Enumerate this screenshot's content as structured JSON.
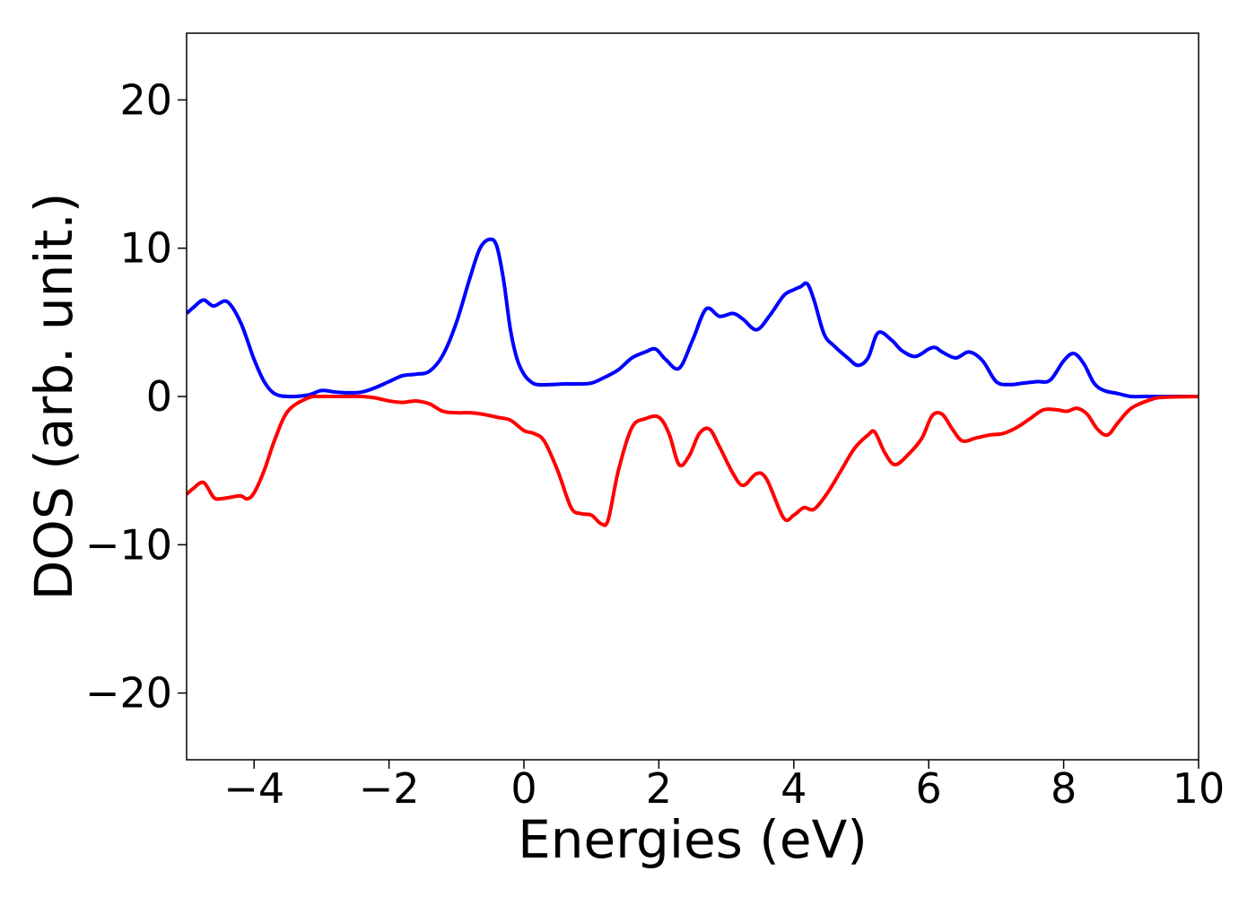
{
  "chart_data": {
    "type": "line",
    "title": "",
    "xlabel": "Energies (eV)",
    "ylabel": "DOS (arb. unit.)",
    "xlim": [
      -5,
      10
    ],
    "ylim": [
      -24.5,
      24.5
    ],
    "grid": false,
    "legend": "none",
    "x_ticks": [
      -4,
      -2,
      0,
      2,
      4,
      6,
      8,
      10
    ],
    "x_tick_labels": [
      "−4",
      "−2",
      "0",
      "2",
      "4",
      "6",
      "8",
      "10"
    ],
    "y_ticks": [
      20,
      10,
      0,
      -10,
      -20
    ],
    "y_tick_labels": [
      "20",
      "10",
      "0",
      "−10",
      "−20"
    ],
    "series": [
      {
        "color": "#0000ff",
        "x": [
          -5.0,
          -4.9,
          -4.75,
          -4.6,
          -4.4,
          -4.2,
          -4.0,
          -3.85,
          -3.7,
          -3.5,
          -3.2,
          -3.0,
          -2.8,
          -2.6,
          -2.4,
          -2.2,
          -2.0,
          -1.8,
          -1.6,
          -1.4,
          -1.2,
          -1.0,
          -0.8,
          -0.65,
          -0.5,
          -0.4,
          -0.3,
          -0.2,
          -0.1,
          0.0,
          0.1,
          0.2,
          0.4,
          0.6,
          0.8,
          1.0,
          1.2,
          1.4,
          1.6,
          1.8,
          1.95,
          2.1,
          2.3,
          2.5,
          2.7,
          2.9,
          3.1,
          3.25,
          3.45,
          3.65,
          3.85,
          4.0,
          4.1,
          4.2,
          4.3,
          4.45,
          4.6,
          4.8,
          4.95,
          5.1,
          5.25,
          5.45,
          5.6,
          5.8,
          6.0,
          6.1,
          6.2,
          6.4,
          6.6,
          6.8,
          7.0,
          7.2,
          7.4,
          7.6,
          7.8,
          8.0,
          8.15,
          8.3,
          8.45,
          8.6,
          8.8,
          9.0,
          9.2,
          9.5,
          10.0
        ],
        "y": [
          5.6,
          6.0,
          6.5,
          6.1,
          6.4,
          5.0,
          2.5,
          1.0,
          0.2,
          0.0,
          0.1,
          0.4,
          0.3,
          0.25,
          0.3,
          0.6,
          1.0,
          1.4,
          1.5,
          1.7,
          2.8,
          5.0,
          8.0,
          10.0,
          10.6,
          10.1,
          7.8,
          4.5,
          2.5,
          1.5,
          1.0,
          0.8,
          0.8,
          0.85,
          0.85,
          0.9,
          1.3,
          1.8,
          2.6,
          3.0,
          3.2,
          2.5,
          1.9,
          3.8,
          5.9,
          5.4,
          5.6,
          5.2,
          4.5,
          5.5,
          6.8,
          7.2,
          7.4,
          7.6,
          6.5,
          4.2,
          3.4,
          2.6,
          2.1,
          2.6,
          4.3,
          3.8,
          3.1,
          2.7,
          3.2,
          3.3,
          3.0,
          2.6,
          3.0,
          2.4,
          1.0,
          0.8,
          0.9,
          1.0,
          1.1,
          2.4,
          2.9,
          2.2,
          0.9,
          0.4,
          0.2,
          0.0,
          0.0,
          0.0,
          0.0
        ]
      },
      {
        "color": "#ff0000",
        "x": [
          -5.0,
          -4.9,
          -4.75,
          -4.6,
          -4.5,
          -4.35,
          -4.2,
          -4.1,
          -4.0,
          -3.85,
          -3.7,
          -3.5,
          -3.2,
          -3.0,
          -2.8,
          -2.6,
          -2.4,
          -2.2,
          -2.0,
          -1.8,
          -1.6,
          -1.4,
          -1.2,
          -1.0,
          -0.8,
          -0.6,
          -0.4,
          -0.2,
          0.0,
          0.15,
          0.3,
          0.5,
          0.7,
          0.85,
          1.0,
          1.15,
          1.25,
          1.4,
          1.6,
          1.8,
          2.0,
          2.15,
          2.3,
          2.45,
          2.6,
          2.75,
          2.9,
          3.1,
          3.25,
          3.45,
          3.6,
          3.85,
          4.0,
          4.15,
          4.3,
          4.5,
          4.7,
          4.9,
          5.1,
          5.2,
          5.35,
          5.5,
          5.7,
          5.9,
          6.05,
          6.2,
          6.35,
          6.5,
          6.7,
          6.9,
          7.1,
          7.3,
          7.5,
          7.7,
          7.9,
          8.05,
          8.2,
          8.35,
          8.5,
          8.65,
          8.8,
          9.0,
          9.3,
          9.5,
          10.0
        ],
        "y": [
          -6.6,
          -6.2,
          -5.8,
          -6.8,
          -6.9,
          -6.8,
          -6.7,
          -6.9,
          -6.5,
          -5.0,
          -3.0,
          -1.0,
          -0.1,
          0.0,
          0.0,
          0.0,
          0.0,
          -0.1,
          -0.3,
          -0.4,
          -0.3,
          -0.5,
          -1.0,
          -1.1,
          -1.1,
          -1.2,
          -1.4,
          -1.6,
          -2.3,
          -2.5,
          -3.0,
          -5.0,
          -7.5,
          -7.9,
          -8.0,
          -8.6,
          -8.3,
          -5.0,
          -2.1,
          -1.5,
          -1.4,
          -2.5,
          -4.6,
          -4.0,
          -2.5,
          -2.2,
          -3.4,
          -5.2,
          -6.0,
          -5.2,
          -5.6,
          -8.2,
          -8.0,
          -7.5,
          -7.6,
          -6.5,
          -5.0,
          -3.5,
          -2.6,
          -2.4,
          -3.8,
          -4.6,
          -3.9,
          -2.8,
          -1.3,
          -1.2,
          -2.2,
          -3.0,
          -2.8,
          -2.6,
          -2.5,
          -2.1,
          -1.5,
          -0.9,
          -0.9,
          -1.0,
          -0.8,
          -1.2,
          -2.2,
          -2.6,
          -1.8,
          -0.8,
          -0.2,
          -0.05,
          0.0
        ]
      }
    ]
  }
}
